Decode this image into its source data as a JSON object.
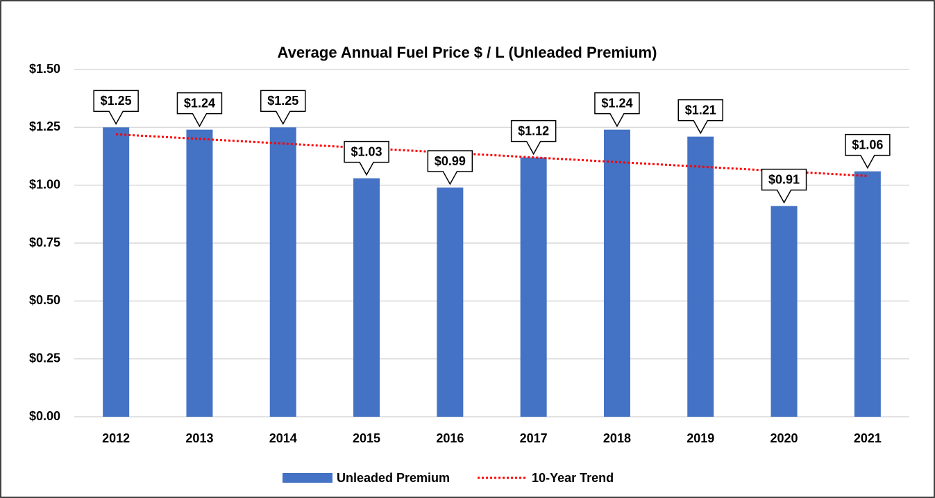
{
  "chart_data": {
    "type": "bar",
    "title": "Average Annual Fuel Price $ / L (Unleaded Premium)",
    "categories": [
      "2012",
      "2013",
      "2014",
      "2015",
      "2016",
      "2017",
      "2018",
      "2019",
      "2020",
      "2021"
    ],
    "series": [
      {
        "name": "Unleaded Premium",
        "color": "#4472c4",
        "values": [
          1.25,
          1.24,
          1.25,
          1.03,
          0.99,
          1.12,
          1.24,
          1.21,
          0.91,
          1.06
        ],
        "value_labels": [
          "$1.25",
          "$1.24",
          "$1.25",
          "$1.03",
          "$0.99",
          "$1.12",
          "$1.24",
          "$1.21",
          "$0.91",
          "$1.06"
        ]
      },
      {
        "name": "10-Year Trend",
        "color": "#ff0000",
        "type": "line",
        "values": [
          1.22,
          1.2,
          1.18,
          1.16,
          1.14,
          1.12,
          1.1,
          1.08,
          1.06,
          1.04
        ]
      }
    ],
    "ylim": [
      0,
      1.5
    ],
    "yticks": [
      {
        "value": 0,
        "label": "$0.00"
      },
      {
        "value": 0.25,
        "label": "$0.25"
      },
      {
        "value": 0.5,
        "label": "$0.50"
      },
      {
        "value": 0.75,
        "label": "$0.75"
      },
      {
        "value": 1,
        "label": "$1.00"
      },
      {
        "value": 1.25,
        "label": "$1.25"
      },
      {
        "value": 1.5,
        "label": "$1.50"
      }
    ],
    "grid": true,
    "legend": "bottom"
  }
}
